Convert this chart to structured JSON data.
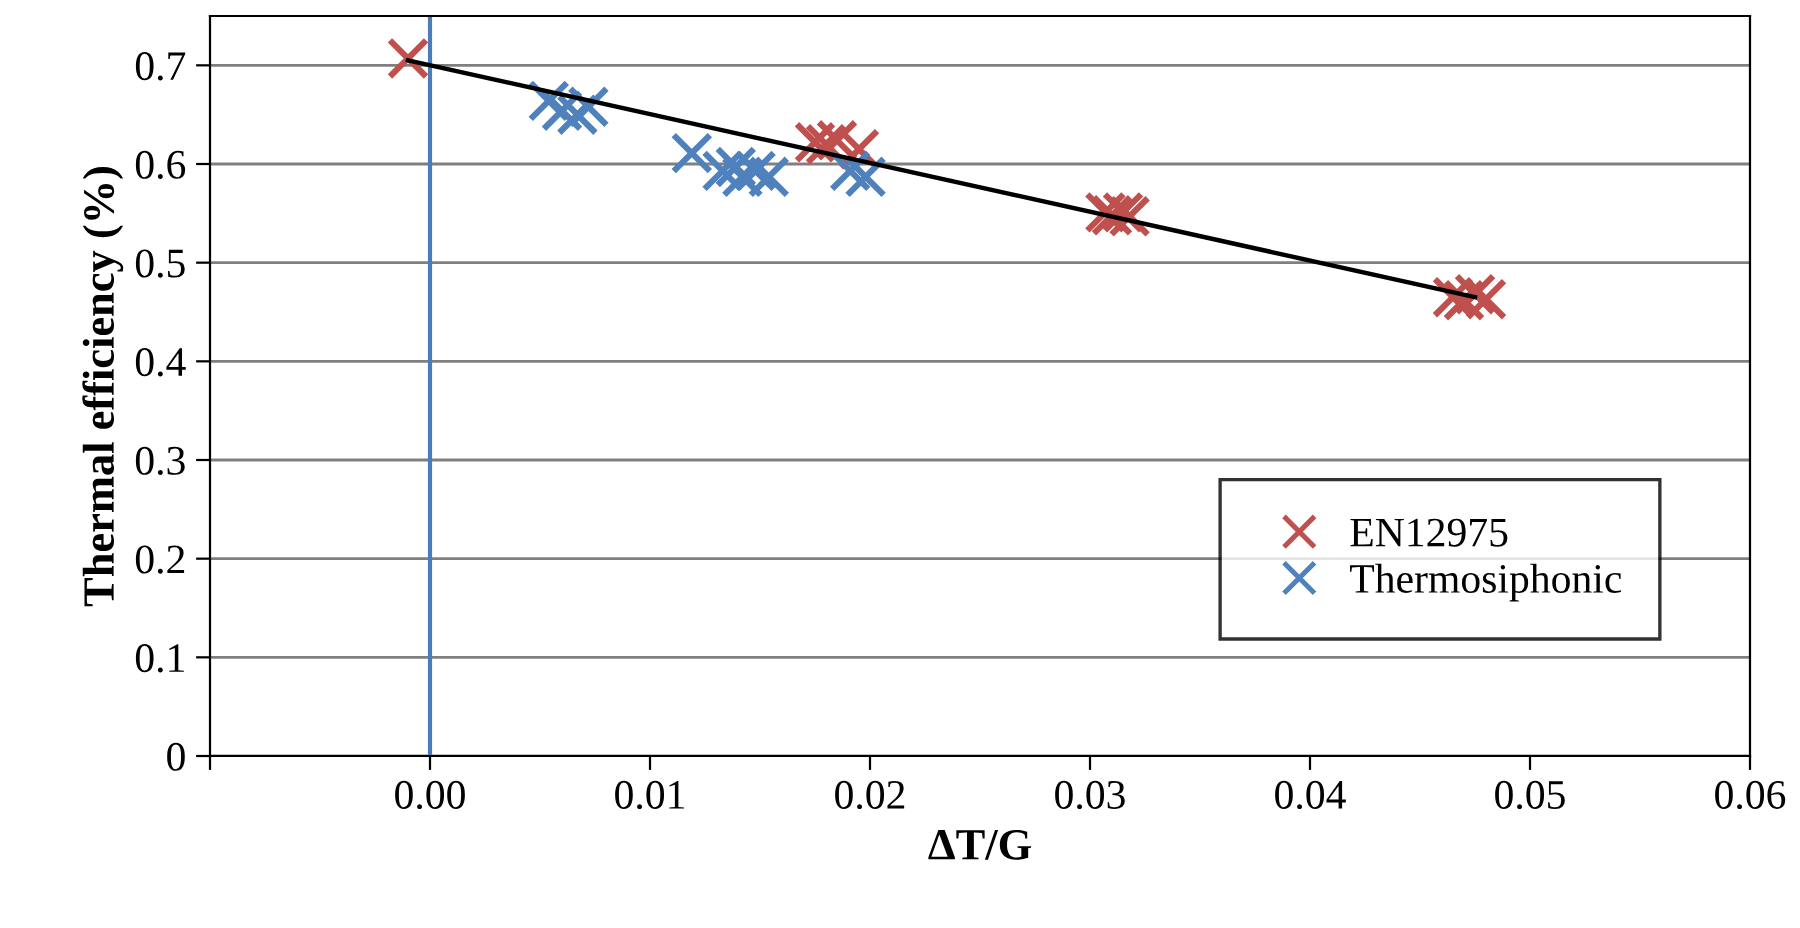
{
  "chart_data": {
    "type": "scatter",
    "xlabel": "ΔT/G",
    "ylabel": "Thermal efficiency (%)",
    "xlim": [
      -0.01,
      0.06
    ],
    "xticks": [
      {
        "value": -0.01,
        "label": null
      },
      {
        "value": 0,
        "label": "0.00"
      },
      {
        "value": 0.01,
        "label": "0.01"
      },
      {
        "value": 0.02,
        "label": "0.02"
      },
      {
        "value": 0.03,
        "label": "0.03"
      },
      {
        "value": 0.04,
        "label": "0.04"
      },
      {
        "value": 0.05,
        "label": "0.05"
      },
      {
        "value": 0.06,
        "label": "0.06"
      }
    ],
    "ylim": [
      0,
      0.75
    ],
    "yticks": [
      0,
      0.1,
      0.2,
      0.3,
      0.4,
      0.5,
      0.6,
      0.7
    ],
    "grid": "y",
    "legend": "lower right",
    "ref_lines": [
      {
        "axis": "x",
        "value": 0,
        "color": "#4a7ebb"
      }
    ],
    "series": [
      {
        "name": "EN12975",
        "color": "#c0504d",
        "marker": "cross",
        "x": [
          -0.001,
          0.0175,
          0.018,
          0.0185,
          0.0195,
          0.0307,
          0.031,
          0.0315,
          0.0318,
          0.0465,
          0.047,
          0.0475,
          0.048
        ],
        "values": [
          0.707,
          0.622,
          0.62,
          0.624,
          0.615,
          0.551,
          0.548,
          0.551,
          0.547,
          0.465,
          0.462,
          0.468,
          0.463
        ]
      },
      {
        "name": "Thermosiphonic",
        "color": "#4f81bd",
        "marker": "cross",
        "x": [
          0.0054,
          0.006,
          0.0067,
          0.0072,
          0.0119,
          0.0133,
          0.0139,
          0.0142,
          0.0148,
          0.0154,
          0.0191,
          0.0198
        ],
        "values": [
          0.664,
          0.654,
          0.65,
          0.658,
          0.611,
          0.593,
          0.597,
          0.587,
          0.593,
          0.587,
          0.593,
          0.587
        ]
      },
      {
        "type": "line",
        "color": "#000000",
        "marker": "none",
        "x": [
          -0.001,
          0.0475
        ],
        "values": [
          0.705,
          0.465
        ]
      }
    ]
  }
}
